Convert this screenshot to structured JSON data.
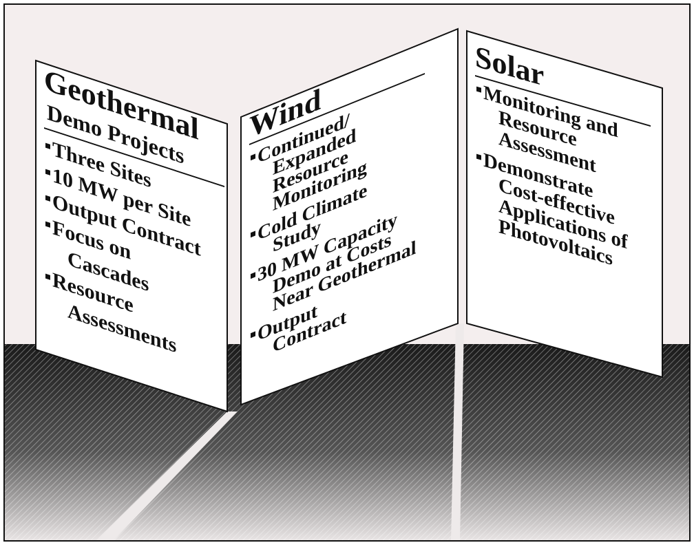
{
  "panels": [
    {
      "title": "Geothermal",
      "subtitle": "Demo Projects",
      "items": [
        {
          "lines": [
            "Three Sites"
          ]
        },
        {
          "lines": [
            "10 MW per Site"
          ]
        },
        {
          "lines": [
            "Output Contract"
          ]
        },
        {
          "lines": [
            "Focus on",
            "Cascades"
          ]
        },
        {
          "lines": [
            "Resource",
            "Assessments"
          ]
        }
      ]
    },
    {
      "title": "Wind",
      "items": [
        {
          "lines": [
            "Continued/",
            "Expanded",
            "Resource",
            "Monitoring"
          ]
        },
        {
          "lines": [
            "Cold Climate",
            "Study"
          ]
        },
        {
          "lines": [
            "30 MW Capacity",
            "Demo at Costs",
            "Near Geothermal"
          ]
        },
        {
          "lines": [
            "Output",
            "Contract"
          ]
        }
      ]
    },
    {
      "title": "Solar",
      "items": [
        {
          "lines": [
            "Monitoring and",
            "Resource",
            "Assessment"
          ]
        },
        {
          "lines": [
            "Demonstrate",
            "Cost-effective",
            "Applications of",
            "Photovoltaics"
          ]
        }
      ]
    }
  ]
}
